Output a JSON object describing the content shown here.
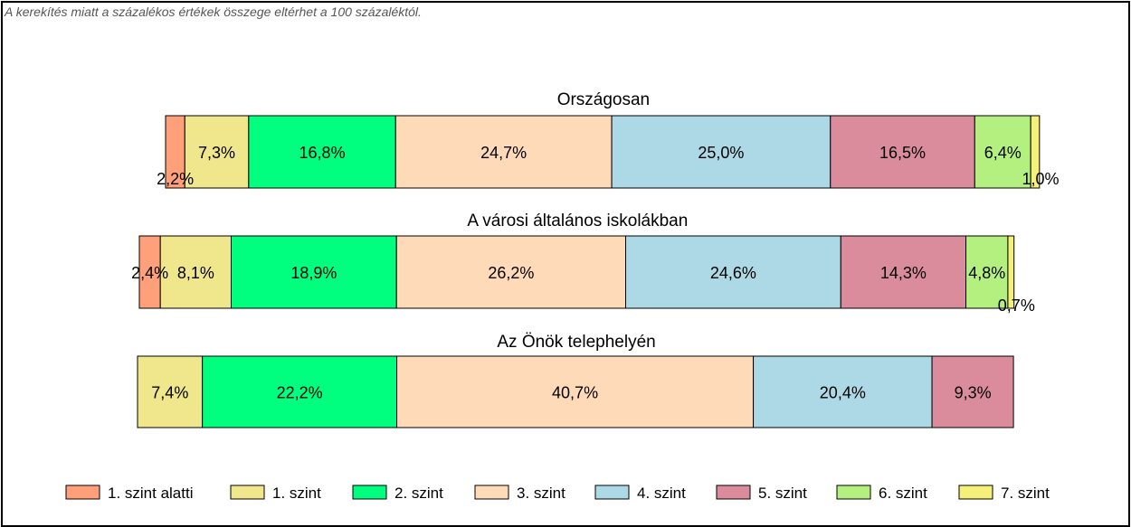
{
  "note": "A kerekítés miatt a  százalékos értékek összege eltérhet a 100 százaléktól.",
  "chart_data": {
    "type": "bar",
    "orientation": "horizontal-stacked",
    "legend_position": "bottom",
    "legend": [
      {
        "name": "1. szint alatti",
        "color": "#FFA07A"
      },
      {
        "name": "1. szint",
        "color": "#F0E68C"
      },
      {
        "name": "2. szint",
        "color": "#00FF7F"
      },
      {
        "name": "3. szint",
        "color": "#FFDAB9"
      },
      {
        "name": "4. szint",
        "color": "#ADD8E6"
      },
      {
        "name": "5. szint",
        "color": "#DB8C9C"
      },
      {
        "name": "6. szint",
        "color": "#B4F080"
      },
      {
        "name": "7. szint",
        "color": "#F5F07A"
      }
    ],
    "groups": [
      {
        "title": "Országosan",
        "values": [
          2.2,
          7.3,
          16.8,
          24.7,
          25.0,
          16.5,
          6.4,
          1.0
        ],
        "labels": [
          "2,2%",
          "7,3%",
          "16,8%",
          "24,7%",
          "25,0%",
          "16,5%",
          "6,4%",
          "1,0%"
        ]
      },
      {
        "title": "A városi általános iskolákban",
        "values": [
          2.4,
          8.1,
          18.9,
          26.2,
          24.6,
          14.3,
          4.8,
          0.7
        ],
        "labels": [
          "2,4%",
          "8,1%",
          "18,9%",
          "26,2%",
          "24,6%",
          "14,3%",
          "4,8%",
          "0,7%"
        ]
      },
      {
        "title": "Az Önök telephelyén",
        "values": [
          0,
          7.4,
          22.2,
          40.7,
          20.4,
          9.3,
          0,
          0
        ],
        "labels": [
          "",
          "7,4%",
          "22,2%",
          "40,7%",
          "20,4%",
          "9,3%",
          "",
          ""
        ]
      }
    ]
  }
}
